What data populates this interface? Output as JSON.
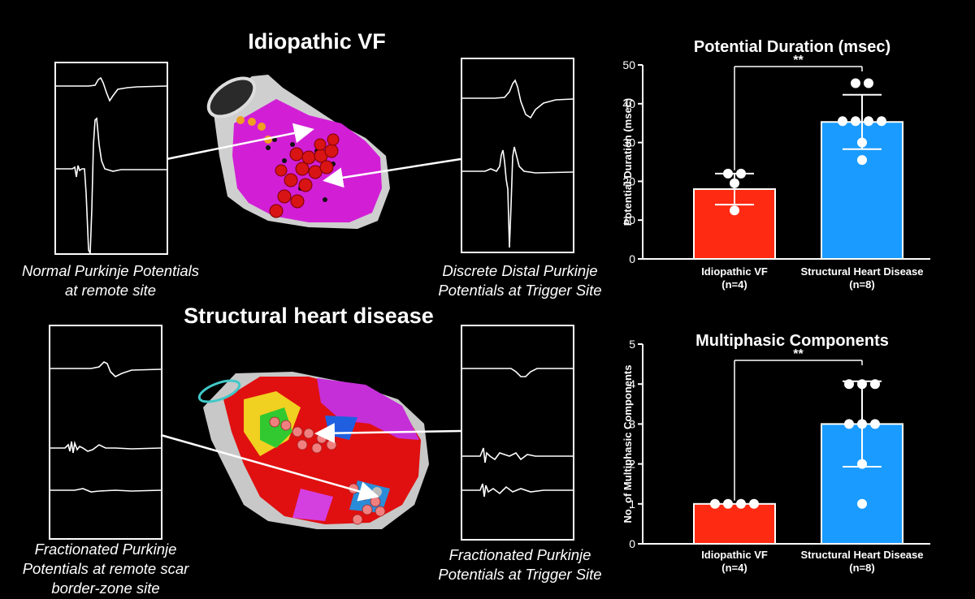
{
  "panels": {
    "idiopathic_title": "Idiopathic VF",
    "structural_title": "Structural heart disease",
    "captions": {
      "top_left": [
        "Normal Purkinje Potentials",
        "at remote site"
      ],
      "top_right": [
        "Discrete Distal Purkinje",
        "Potentials at Trigger Site"
      ],
      "bottom_left": [
        "Fractionated Purkinje",
        "Potentials at remote scar",
        "border-zone site"
      ],
      "bottom_right": [
        "Fractionated Purkinje",
        "Potentials at Trigger Site"
      ]
    }
  },
  "colors": {
    "idiopathic_bar": "#ff2a12",
    "structural_bar": "#1a9bff",
    "background": "#000000",
    "map_magenta": "#d21fd6",
    "map_red": "#e01010"
  },
  "chart_data": [
    {
      "type": "bar",
      "title": "Potential Duration (msec)",
      "ylabel": "Potential Duration (msec)",
      "ylim": [
        0,
        50
      ],
      "yticks": [
        "0",
        "10",
        "20",
        "30",
        "40",
        "50"
      ],
      "categories": [
        {
          "name": "Idiopathic VF",
          "n": "(n=4)"
        },
        {
          "name": "Structural Heart Disease",
          "n": "(n=8)"
        }
      ],
      "values": [
        18,
        35.3
      ],
      "errors": [
        4,
        7
      ],
      "points": [
        [
          22,
          22,
          19.5,
          12.5
        ],
        [
          45.3,
          45.3,
          35.5,
          35.5,
          35.5,
          35.5,
          30,
          25.5
        ]
      ],
      "significance": "**"
    },
    {
      "type": "bar",
      "title": "Multiphasic Components",
      "ylabel": "No. of Multiphasic Components",
      "ylim": [
        0,
        5
      ],
      "yticks": [
        "0",
        "1",
        "2",
        "3",
        "4",
        "5"
      ],
      "categories": [
        {
          "name": "Idiopathic VF",
          "n": "(n=4)"
        },
        {
          "name": "Structural Heart Disease",
          "n": "(n=8)"
        }
      ],
      "values": [
        1,
        3
      ],
      "errors": [
        0,
        1.07
      ],
      "points": [
        [
          1,
          1,
          1,
          1
        ],
        [
          4,
          4,
          4,
          3,
          3,
          3,
          2,
          1
        ]
      ],
      "significance": "**"
    }
  ]
}
